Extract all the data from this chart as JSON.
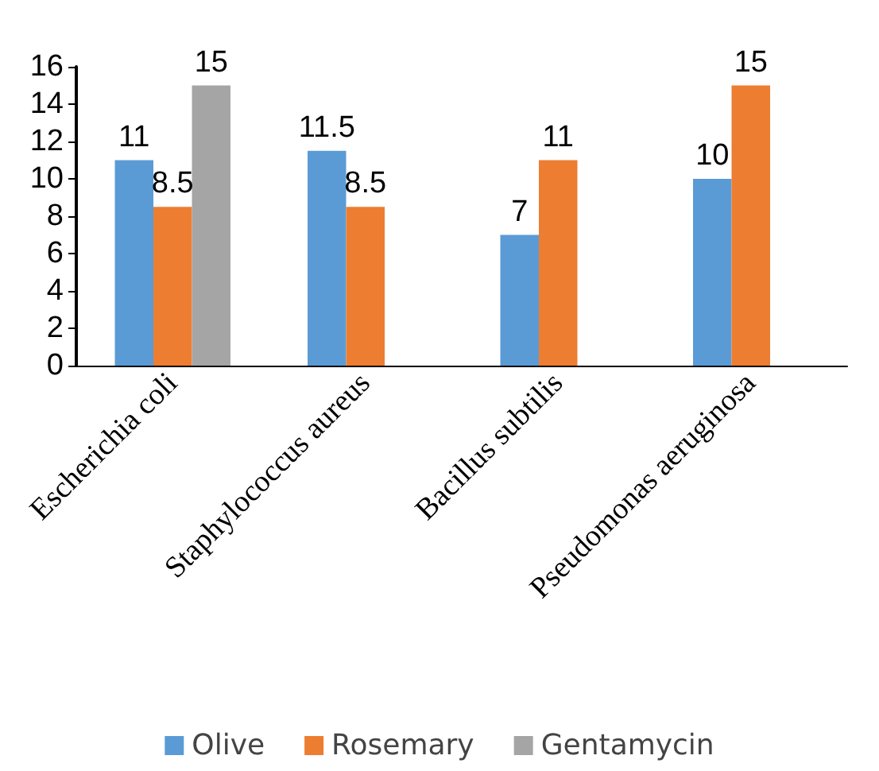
{
  "chart_data": {
    "type": "bar",
    "categories": [
      "Escherichia coli",
      "Staphylococcus aureus",
      "Bacillus subtilis",
      "Pseudomonas aeruginosa"
    ],
    "series": [
      {
        "name": "Olive",
        "color": "#5b9bd5",
        "values": [
          11,
          11.5,
          7,
          10
        ]
      },
      {
        "name": "Rosemary",
        "color": "#ed7d31",
        "values": [
          8.5,
          8.5,
          11,
          15
        ]
      },
      {
        "name": "Gentamycin",
        "color": "#a5a5a5",
        "values": [
          15,
          null,
          null,
          null
        ]
      }
    ],
    "ylim": [
      0,
      16
    ],
    "yticks": [
      0,
      2,
      4,
      6,
      8,
      10,
      12,
      14,
      16
    ],
    "grid": false,
    "legend": "bottom",
    "data_labels": true
  }
}
